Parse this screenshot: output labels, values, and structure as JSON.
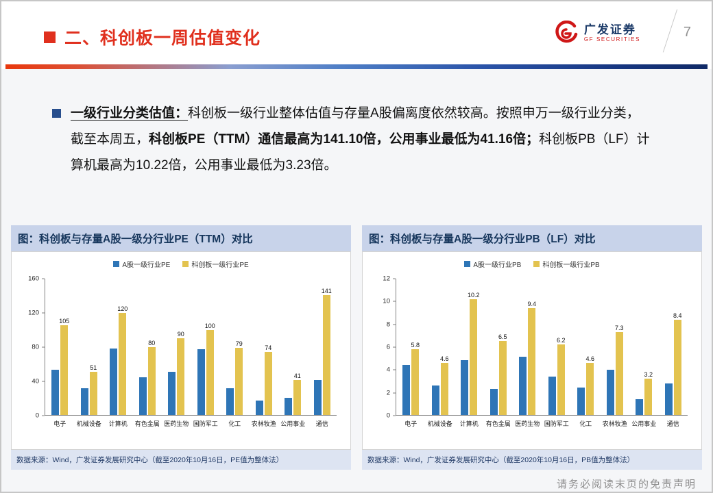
{
  "header": {
    "title": "二、科创板一周估值变化",
    "page_number": "7",
    "logo": {
      "name": "广发证券",
      "sub": "GF SECURITIES"
    }
  },
  "bullet": {
    "lead": "一级行业分类估值：",
    "part1": "科创板一级行业整体估值与存量A股偏离度依然较高。按照申万一级行业分类，截至本周五，",
    "bold1": "科创板PE（TTM）通信最高为141.10倍，公用事业最低为41.16倍；",
    "part2": "科创板PB（LF）计算机最高为10.22倍，公用事业最低为3.23倍。"
  },
  "footer": {
    "disclaimer": "请务必阅读末页的免责声明"
  },
  "chart_data": [
    {
      "type": "bar",
      "title": "图：科创板与存量A股一级分行业PE（TTM）对比",
      "categories": [
        "电子",
        "机械设备",
        "计算机",
        "有色金属",
        "医药生物",
        "国防军工",
        "化工",
        "农林牧渔",
        "公用事业",
        "通信"
      ],
      "series": [
        {
          "name": "A股一级行业PE",
          "color": "#2e75b6",
          "values": [
            53,
            31,
            78,
            44,
            51,
            77,
            31,
            17,
            20,
            41
          ]
        },
        {
          "name": "科创板一级行业PE",
          "color": "#e3c34f",
          "values": [
            105,
            51,
            120,
            80,
            90,
            100,
            79,
            74,
            41,
            141
          ],
          "labels": [
            "105",
            "51",
            "120",
            "80",
            "90",
            "100",
            "79",
            "74",
            "41",
            "141"
          ]
        }
      ],
      "ylim": [
        0,
        160
      ],
      "yticks": [
        0,
        40,
        80,
        120,
        160
      ],
      "legend_position": "top",
      "grid": false,
      "source": "数据来源：Wind，广发证券发展研究中心（截至2020年10月16日，PE值为整体法）"
    },
    {
      "type": "bar",
      "title": "图：科创板与存量A股一级分行业PB（LF）对比",
      "categories": [
        "电子",
        "机械设备",
        "计算机",
        "有色金属",
        "医药生物",
        "国防军工",
        "化工",
        "农林牧渔",
        "公用事业",
        "通信"
      ],
      "series": [
        {
          "name": "A股一级行业PB",
          "color": "#2e75b6",
          "values": [
            4.4,
            2.6,
            4.8,
            2.3,
            5.1,
            3.4,
            2.4,
            4.0,
            1.4,
            2.8
          ]
        },
        {
          "name": "科创板一级行业PB",
          "color": "#e3c34f",
          "values": [
            5.8,
            4.6,
            10.2,
            6.5,
            9.4,
            6.2,
            4.6,
            7.3,
            3.2,
            8.4
          ],
          "labels": [
            "5.8",
            "4.6",
            "10.2",
            "6.5",
            "9.4",
            "6.2",
            "4.6",
            "7.3",
            "3.2",
            "8.4"
          ]
        }
      ],
      "ylim": [
        0,
        12
      ],
      "yticks": [
        0,
        2,
        4,
        6,
        8,
        10,
        12
      ],
      "legend_position": "top",
      "grid": false,
      "source": "数据来源：Wind，广发证券发展研究中心（截至2020年10月16日，PB值为整体法）"
    }
  ]
}
